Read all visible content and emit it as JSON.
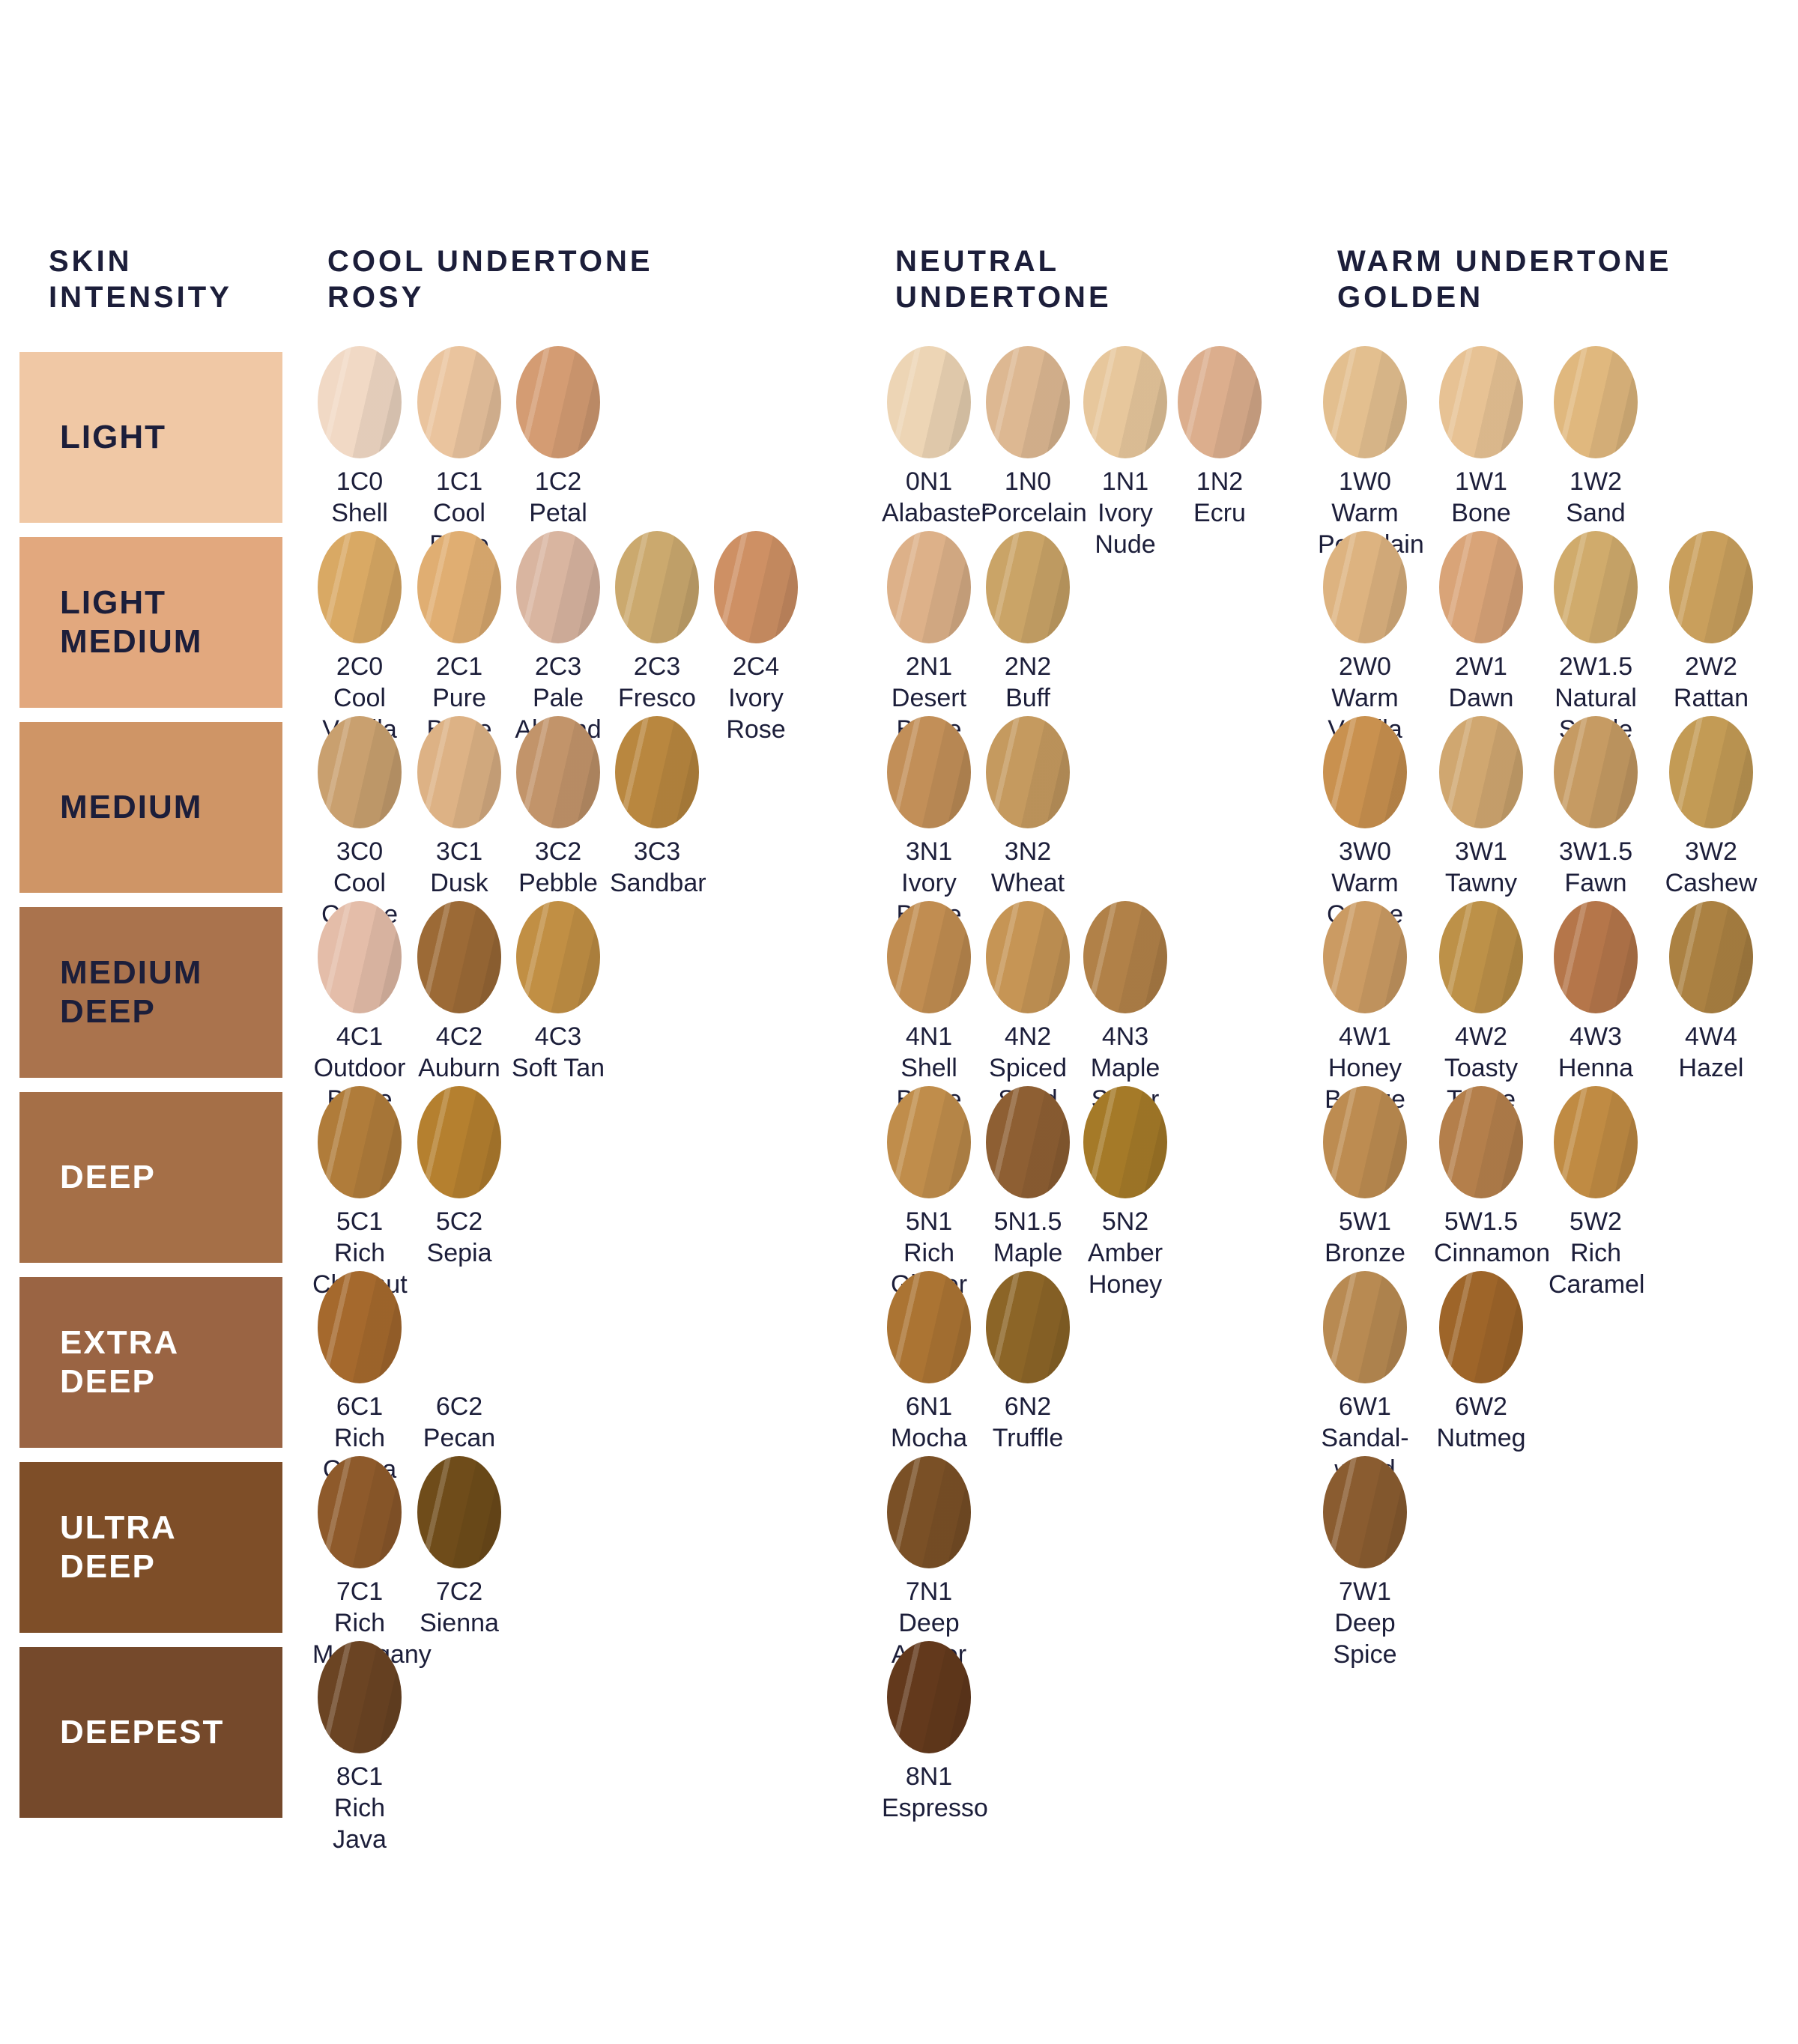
{
  "page": {
    "background": "#ffffff",
    "text_color": "#1c1e3a"
  },
  "headers": [
    {
      "id": "skin-intensity",
      "lines": [
        "SKIN",
        "INTENSITY"
      ]
    },
    {
      "id": "cool",
      "lines": [
        "COOL UNDERTONE",
        "ROSY"
      ]
    },
    {
      "id": "neutral",
      "lines": [
        "NEUTRAL",
        "UNDERTONE"
      ]
    },
    {
      "id": "warm",
      "lines": [
        "WARM UNDERTONE",
        "GOLDEN"
      ]
    }
  ],
  "rows": [
    {
      "label_lines": [
        "LIGHT"
      ],
      "band_color": "#f0c8a5",
      "label_color": "#1c1e3a",
      "cool": [
        {
          "code": "1C0",
          "name": "Shell",
          "color": "#f1d9c5"
        },
        {
          "code": "1C1",
          "name": "Cool Bone",
          "color": "#eac49e"
        },
        {
          "code": "1C2",
          "name": "Petal",
          "color": "#d49c73"
        }
      ],
      "neutral": [
        {
          "code": "0N1",
          "name": "Alabaster",
          "color": "#edd5b5"
        },
        {
          "code": "1N0",
          "name": "Porcelain",
          "color": "#ddb892"
        },
        {
          "code": "1N1",
          "name": "Ivory Nude",
          "color": "#e7c79c"
        },
        {
          "code": "1N2",
          "name": "Ecru",
          "color": "#dcae8d"
        }
      ],
      "warm": [
        {
          "code": "1W0",
          "name": "Warm Porcelain",
          "color": "#e3bf8f"
        },
        {
          "code": "1W1",
          "name": "Bone",
          "color": "#e7c294"
        },
        {
          "code": "1W2",
          "name": "Sand",
          "color": "#e0b87e"
        }
      ]
    },
    {
      "label_lines": [
        "LIGHT",
        "MEDIUM"
      ],
      "band_color": "#e2a87e",
      "label_color": "#1c1e3a",
      "cool": [
        {
          "code": "2C0",
          "name": "Cool Vanilla",
          "color": "#d9a964"
        },
        {
          "code": "2C1",
          "name": "Pure Beige",
          "color": "#e0ae72"
        },
        {
          "code": "2C3",
          "name": "Pale Almond",
          "color": "#d9b5a0"
        },
        {
          "code": "2C3",
          "name": "Fresco",
          "color": "#cba96e"
        },
        {
          "code": "2C4",
          "name": "Ivory Rose",
          "color": "#ce9064"
        }
      ],
      "neutral": [
        {
          "code": "2N1",
          "name": "Desert Beige",
          "color": "#ddb189"
        },
        {
          "code": "2N2",
          "name": "Buff",
          "color": "#caa467"
        }
      ],
      "warm": [
        {
          "code": "2W0",
          "name": "Warm Vanilla",
          "color": "#ddb380"
        },
        {
          "code": "2W1",
          "name": "Dawn",
          "color": "#d9a478"
        },
        {
          "code": "2W1.5",
          "name": "Natural Suede",
          "color": "#d0ab6c"
        },
        {
          "code": "2W2",
          "name": "Rattan",
          "color": "#c99f5c"
        }
      ]
    },
    {
      "label_lines": [
        "MEDIUM"
      ],
      "band_color": "#cf9566",
      "label_color": "#1c1e3a",
      "cool": [
        {
          "code": "3C0",
          "name": "Cool Crème",
          "color": "#c9a06f"
        },
        {
          "code": "3C1",
          "name": "Dusk",
          "color": "#ddb285"
        },
        {
          "code": "3C2",
          "name": "Pebble",
          "color": "#c2946a"
        },
        {
          "code": "3C3",
          "name": "Sandbar",
          "color": "#b9873f"
        }
      ],
      "neutral": [
        {
          "code": "3N1",
          "name": "Ivory Beige",
          "color": "#c28f58"
        },
        {
          "code": "3N2",
          "name": "Wheat",
          "color": "#c59a5f"
        }
      ],
      "warm": [
        {
          "code": "3W0",
          "name": "Warm Créme",
          "color": "#c9914f"
        },
        {
          "code": "3W1",
          "name": "Tawny",
          "color": "#d0a770"
        },
        {
          "code": "3W1.5",
          "name": "Fawn",
          "color": "#c69b63"
        },
        {
          "code": "3W2",
          "name": "Cashew",
          "color": "#c39b55"
        }
      ]
    },
    {
      "label_lines": [
        "MEDIUM",
        "DEEP"
      ],
      "band_color": "#aa734d",
      "label_color": "#1c1e3a",
      "cool": [
        {
          "code": "4C1",
          "name": "Outdoor Beige",
          "color": "#e4bda9"
        },
        {
          "code": "4C2",
          "name": "Auburn",
          "color": "#9c6a36"
        },
        {
          "code": "4C3",
          "name": "Soft Tan",
          "color": "#c18f44"
        }
      ],
      "neutral": [
        {
          "code": "4N1",
          "name": "Shell Beige",
          "color": "#c18d51"
        },
        {
          "code": "4N2",
          "name": "Spiced Sand",
          "color": "#c69555"
        },
        {
          "code": "4N3",
          "name": "Maple Sugar",
          "color": "#b18148"
        }
      ],
      "warm": [
        {
          "code": "4W1",
          "name": "Honey Bronze",
          "color": "#cb9b63"
        },
        {
          "code": "4W2",
          "name": "Toasty Toffee",
          "color": "#bd9148"
        },
        {
          "code": "4W3",
          "name": "Henna",
          "color": "#b5764a"
        },
        {
          "code": "4W4",
          "name": "Hazel",
          "color": "#ab8142"
        }
      ]
    },
    {
      "label_lines": [
        "DEEP"
      ],
      "band_color": "#a56f47",
      "label_color": "#ffffff",
      "cool": [
        {
          "code": "5C1",
          "name": "Rich Chesnut",
          "color": "#b07c3a"
        },
        {
          "code": "5C2",
          "name": "Sepia",
          "color": "#b5802f"
        }
      ],
      "neutral": [
        {
          "code": "5N1",
          "name": "Rich Ginger",
          "color": "#c08d4b"
        },
        {
          "code": "5N1.5",
          "name": "Maple",
          "color": "#8e5f33"
        },
        {
          "code": "5N2",
          "name": "Amber Honey",
          "color": "#a57a28"
        }
      ],
      "warm": [
        {
          "code": "5W1",
          "name": "Bronze",
          "color": "#bd8c51"
        },
        {
          "code": "5W1.5",
          "name": "Cinnamon",
          "color": "#b47f4b"
        },
        {
          "code": "5W2",
          "name": "Rich Caramel",
          "color": "#c08b43"
        }
      ]
    },
    {
      "label_lines": [
        "EXTRA",
        "DEEP"
      ],
      "band_color": "#9a6443",
      "label_color": "#ffffff",
      "cool": [
        {
          "code": "6C1",
          "name": "Rich Cocoa",
          "color": "#a5692d"
        },
        {
          "code": "6C2",
          "name": "Pecan",
          "color": null
        }
      ],
      "neutral": [
        {
          "code": "6N1",
          "name": "Mocha",
          "color": "#ab7433"
        },
        {
          "code": "6N2",
          "name": "Truffle",
          "color": "#8c6527"
        }
      ],
      "warm": [
        {
          "code": "6W1",
          "name": "Sandal- wood",
          "color": "#b88a52"
        },
        {
          "code": "6W2",
          "name": "Nutmeg",
          "color": "#9e6529"
        }
      ]
    },
    {
      "label_lines": [
        "ULTRA",
        "DEEP"
      ],
      "band_color": "#7e4e28",
      "label_color": "#ffffff",
      "cool": [
        {
          "code": "7C1",
          "name": "Rich Mohagany",
          "color": "#8e5a2b"
        },
        {
          "code": "7C2",
          "name": "Sienna",
          "color": "#6f4c1a"
        }
      ],
      "neutral": [
        {
          "code": "7N1",
          "name": "Deep Amber",
          "color": "#7a5026"
        }
      ],
      "warm": [
        {
          "code": "7W1",
          "name": "Deep Spice",
          "color": "#8a5c30"
        }
      ]
    },
    {
      "label_lines": [
        "DEEPEST"
      ],
      "band_color": "#75492b",
      "label_color": "#ffffff",
      "cool": [
        {
          "code": "8C1",
          "name": "Rich Java",
          "color": "#6b4423"
        }
      ],
      "neutral": [
        {
          "code": "8N1",
          "name": "Espresso",
          "color": "#63391c"
        }
      ],
      "warm": []
    }
  ]
}
